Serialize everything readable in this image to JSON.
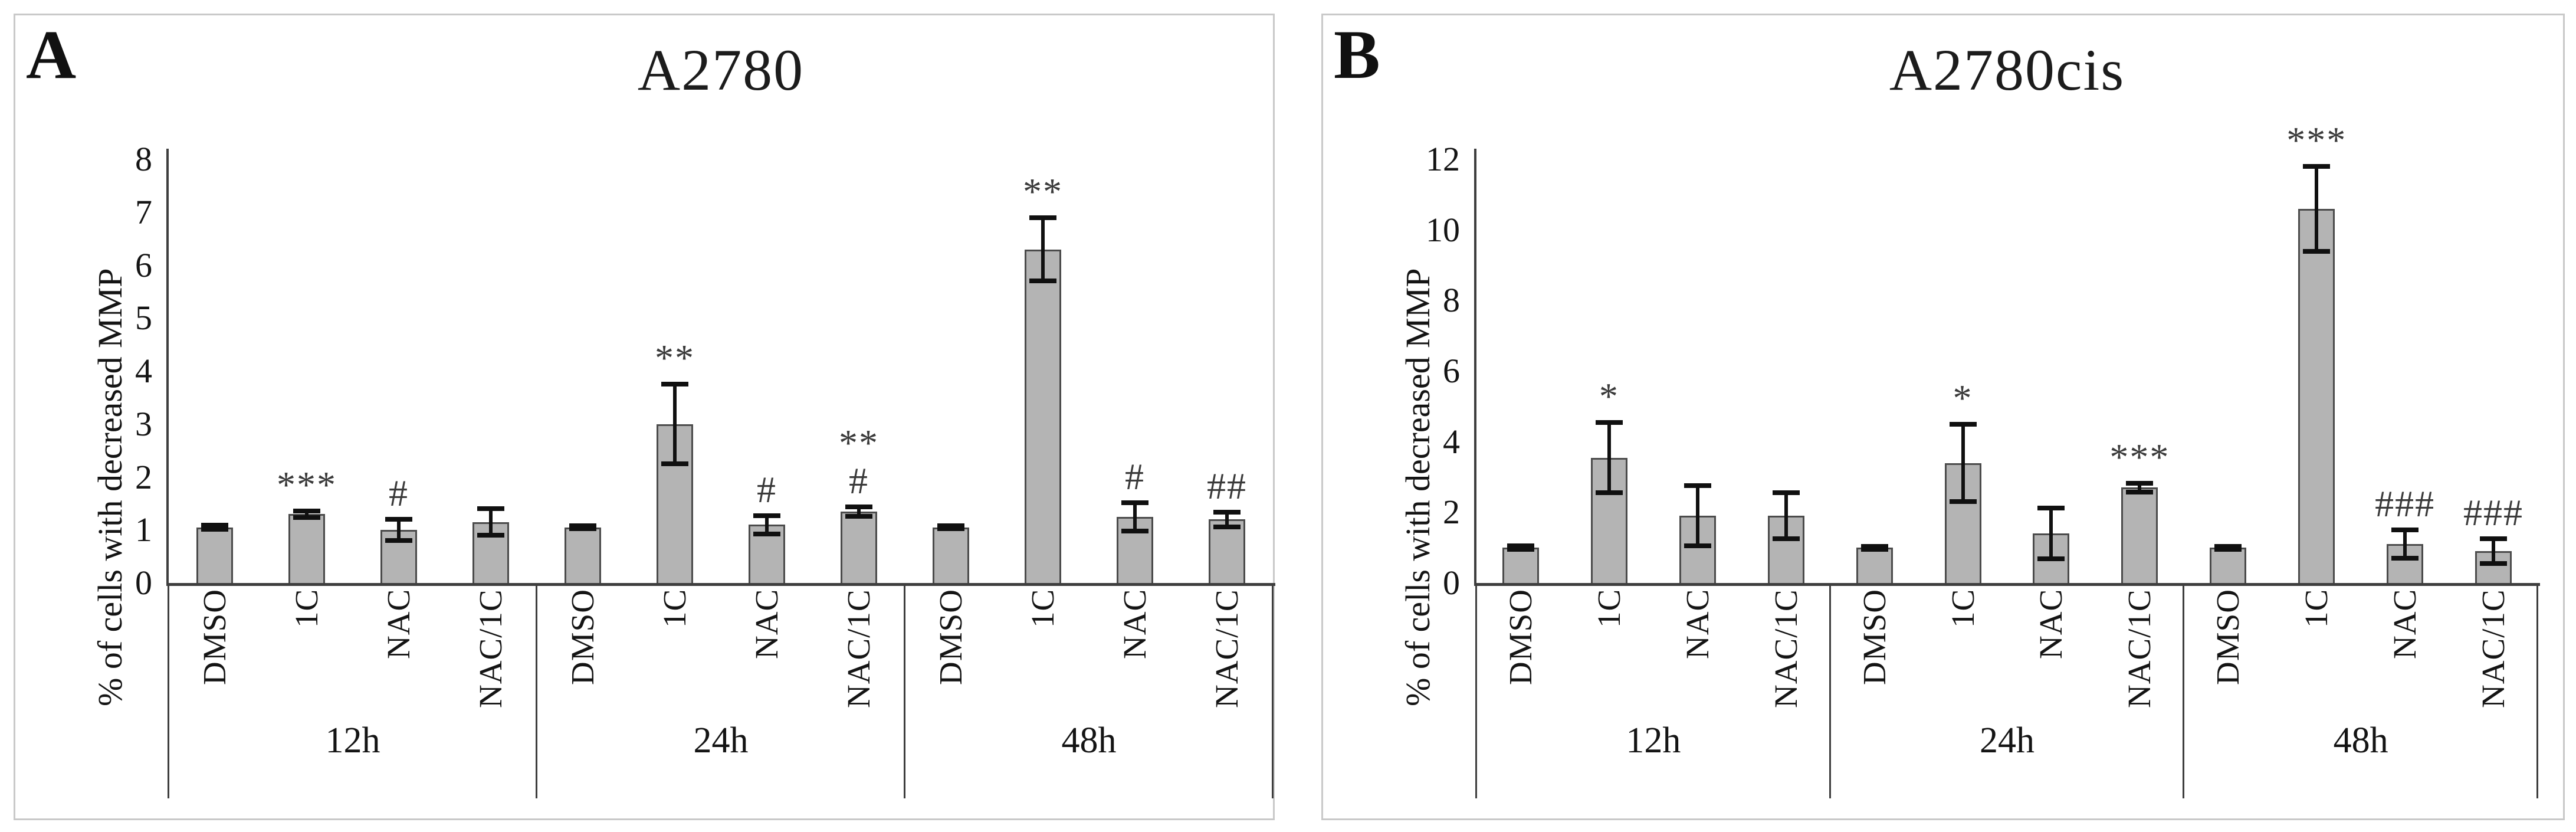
{
  "figure": {
    "background": "#ffffff",
    "panel_border_color": "#c9c9c9"
  },
  "colors": {
    "bar_fill": "#b4b4b4",
    "bar_border": "#4b4b4b",
    "error_bar": "#101010",
    "axis": "#3e3e3e",
    "annotation": "#3a3a3a",
    "text": "#141414"
  },
  "chart_data": [
    {
      "type": "bar",
      "panel_letter": "A",
      "title": "A2780",
      "ylabel": "% of cells with decreased MMP",
      "xlabel": "",
      "ylim": [
        0,
        8
      ],
      "yticks": [
        0,
        1,
        2,
        3,
        4,
        5,
        6,
        7,
        8
      ],
      "grid": false,
      "legend": false,
      "groups": [
        {
          "label": "12h",
          "categories": [
            "DMSO",
            "1C",
            "NAC",
            "NAC/1C"
          ],
          "values": [
            1.05,
            1.3,
            1.0,
            1.15
          ],
          "errors": [
            0.04,
            0.06,
            0.2,
            0.25
          ],
          "annotations": [
            [],
            [
              "***"
            ],
            [
              "#"
            ],
            []
          ]
        },
        {
          "label": "24h",
          "categories": [
            "DMSO",
            "1C",
            "NAC",
            "NAC/1C"
          ],
          "values": [
            1.05,
            3.0,
            1.1,
            1.35
          ],
          "errors": [
            0.03,
            0.75,
            0.17,
            0.09
          ],
          "annotations": [
            [],
            [
              "**"
            ],
            [
              "#"
            ],
            [
              "**",
              "#"
            ]
          ]
        },
        {
          "label": "48h",
          "categories": [
            "DMSO",
            "1C",
            "NAC",
            "NAC/1C"
          ],
          "values": [
            1.05,
            6.3,
            1.25,
            1.2
          ],
          "errors": [
            0.03,
            0.6,
            0.27,
            0.14
          ],
          "annotations": [
            [],
            [
              "**"
            ],
            [
              "#"
            ],
            [
              "##"
            ]
          ]
        }
      ]
    },
    {
      "type": "bar",
      "panel_letter": "B",
      "title": "A2780cis",
      "ylabel": "% of cells with decreased MMP",
      "xlabel": "",
      "ylim": [
        0,
        12
      ],
      "yticks": [
        0,
        2,
        4,
        6,
        8,
        10,
        12
      ],
      "grid": false,
      "legend": false,
      "groups": [
        {
          "label": "12h",
          "categories": [
            "DMSO",
            "1C",
            "NAC",
            "NAC/1C"
          ],
          "values": [
            1.0,
            3.55,
            1.9,
            1.9
          ],
          "errors": [
            0.05,
            1.0,
            0.85,
            0.65
          ],
          "annotations": [
            [],
            [
              "*"
            ],
            [],
            []
          ]
        },
        {
          "label": "24h",
          "categories": [
            "DMSO",
            "1C",
            "NAC",
            "NAC/1C"
          ],
          "values": [
            1.0,
            3.4,
            1.4,
            2.7
          ],
          "errors": [
            0.04,
            1.1,
            0.72,
            0.12
          ],
          "annotations": [
            [],
            [
              "*"
            ],
            [],
            [
              "***"
            ]
          ]
        },
        {
          "label": "48h",
          "categories": [
            "DMSO",
            "1C",
            "NAC",
            "NAC/1C"
          ],
          "values": [
            1.0,
            10.6,
            1.1,
            0.9
          ],
          "errors": [
            0.04,
            1.2,
            0.4,
            0.35
          ],
          "annotations": [
            [],
            [
              "***"
            ],
            [
              "###"
            ],
            [
              "###"
            ]
          ]
        }
      ]
    }
  ]
}
